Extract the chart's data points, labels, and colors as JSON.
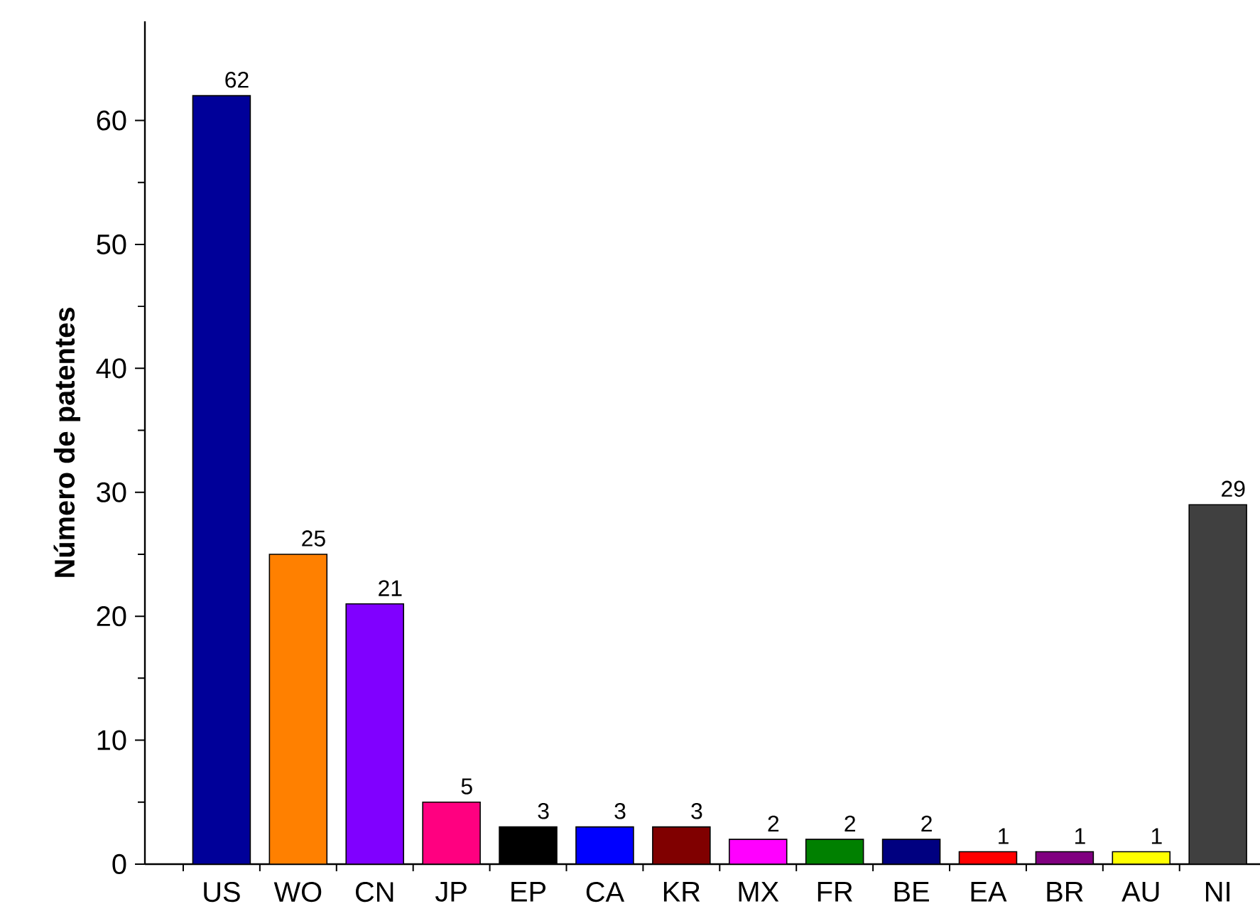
{
  "chart_data": {
    "type": "bar",
    "ylabel": "Número de patentes",
    "categories": [
      "US",
      "WO",
      "CN",
      "JP",
      "EP",
      "CA",
      "KR",
      "MX",
      "FR",
      "BE",
      "EA",
      "BR",
      "AU",
      "NI"
    ],
    "values": [
      62,
      25,
      21,
      5,
      3,
      3,
      3,
      2,
      2,
      2,
      1,
      1,
      1,
      29
    ],
    "colors": [
      "#000099",
      "#ff8000",
      "#8000ff",
      "#ff0080",
      "#000000",
      "#0000ff",
      "#800000",
      "#ff00ff",
      "#008000",
      "#000080",
      "#ff0000",
      "#800080",
      "#ffff00",
      "#404040"
    ],
    "ylim": [
      0,
      68
    ],
    "yticks": [
      0,
      10,
      20,
      30,
      40,
      50,
      60
    ],
    "data_labels": true,
    "grid": false
  }
}
